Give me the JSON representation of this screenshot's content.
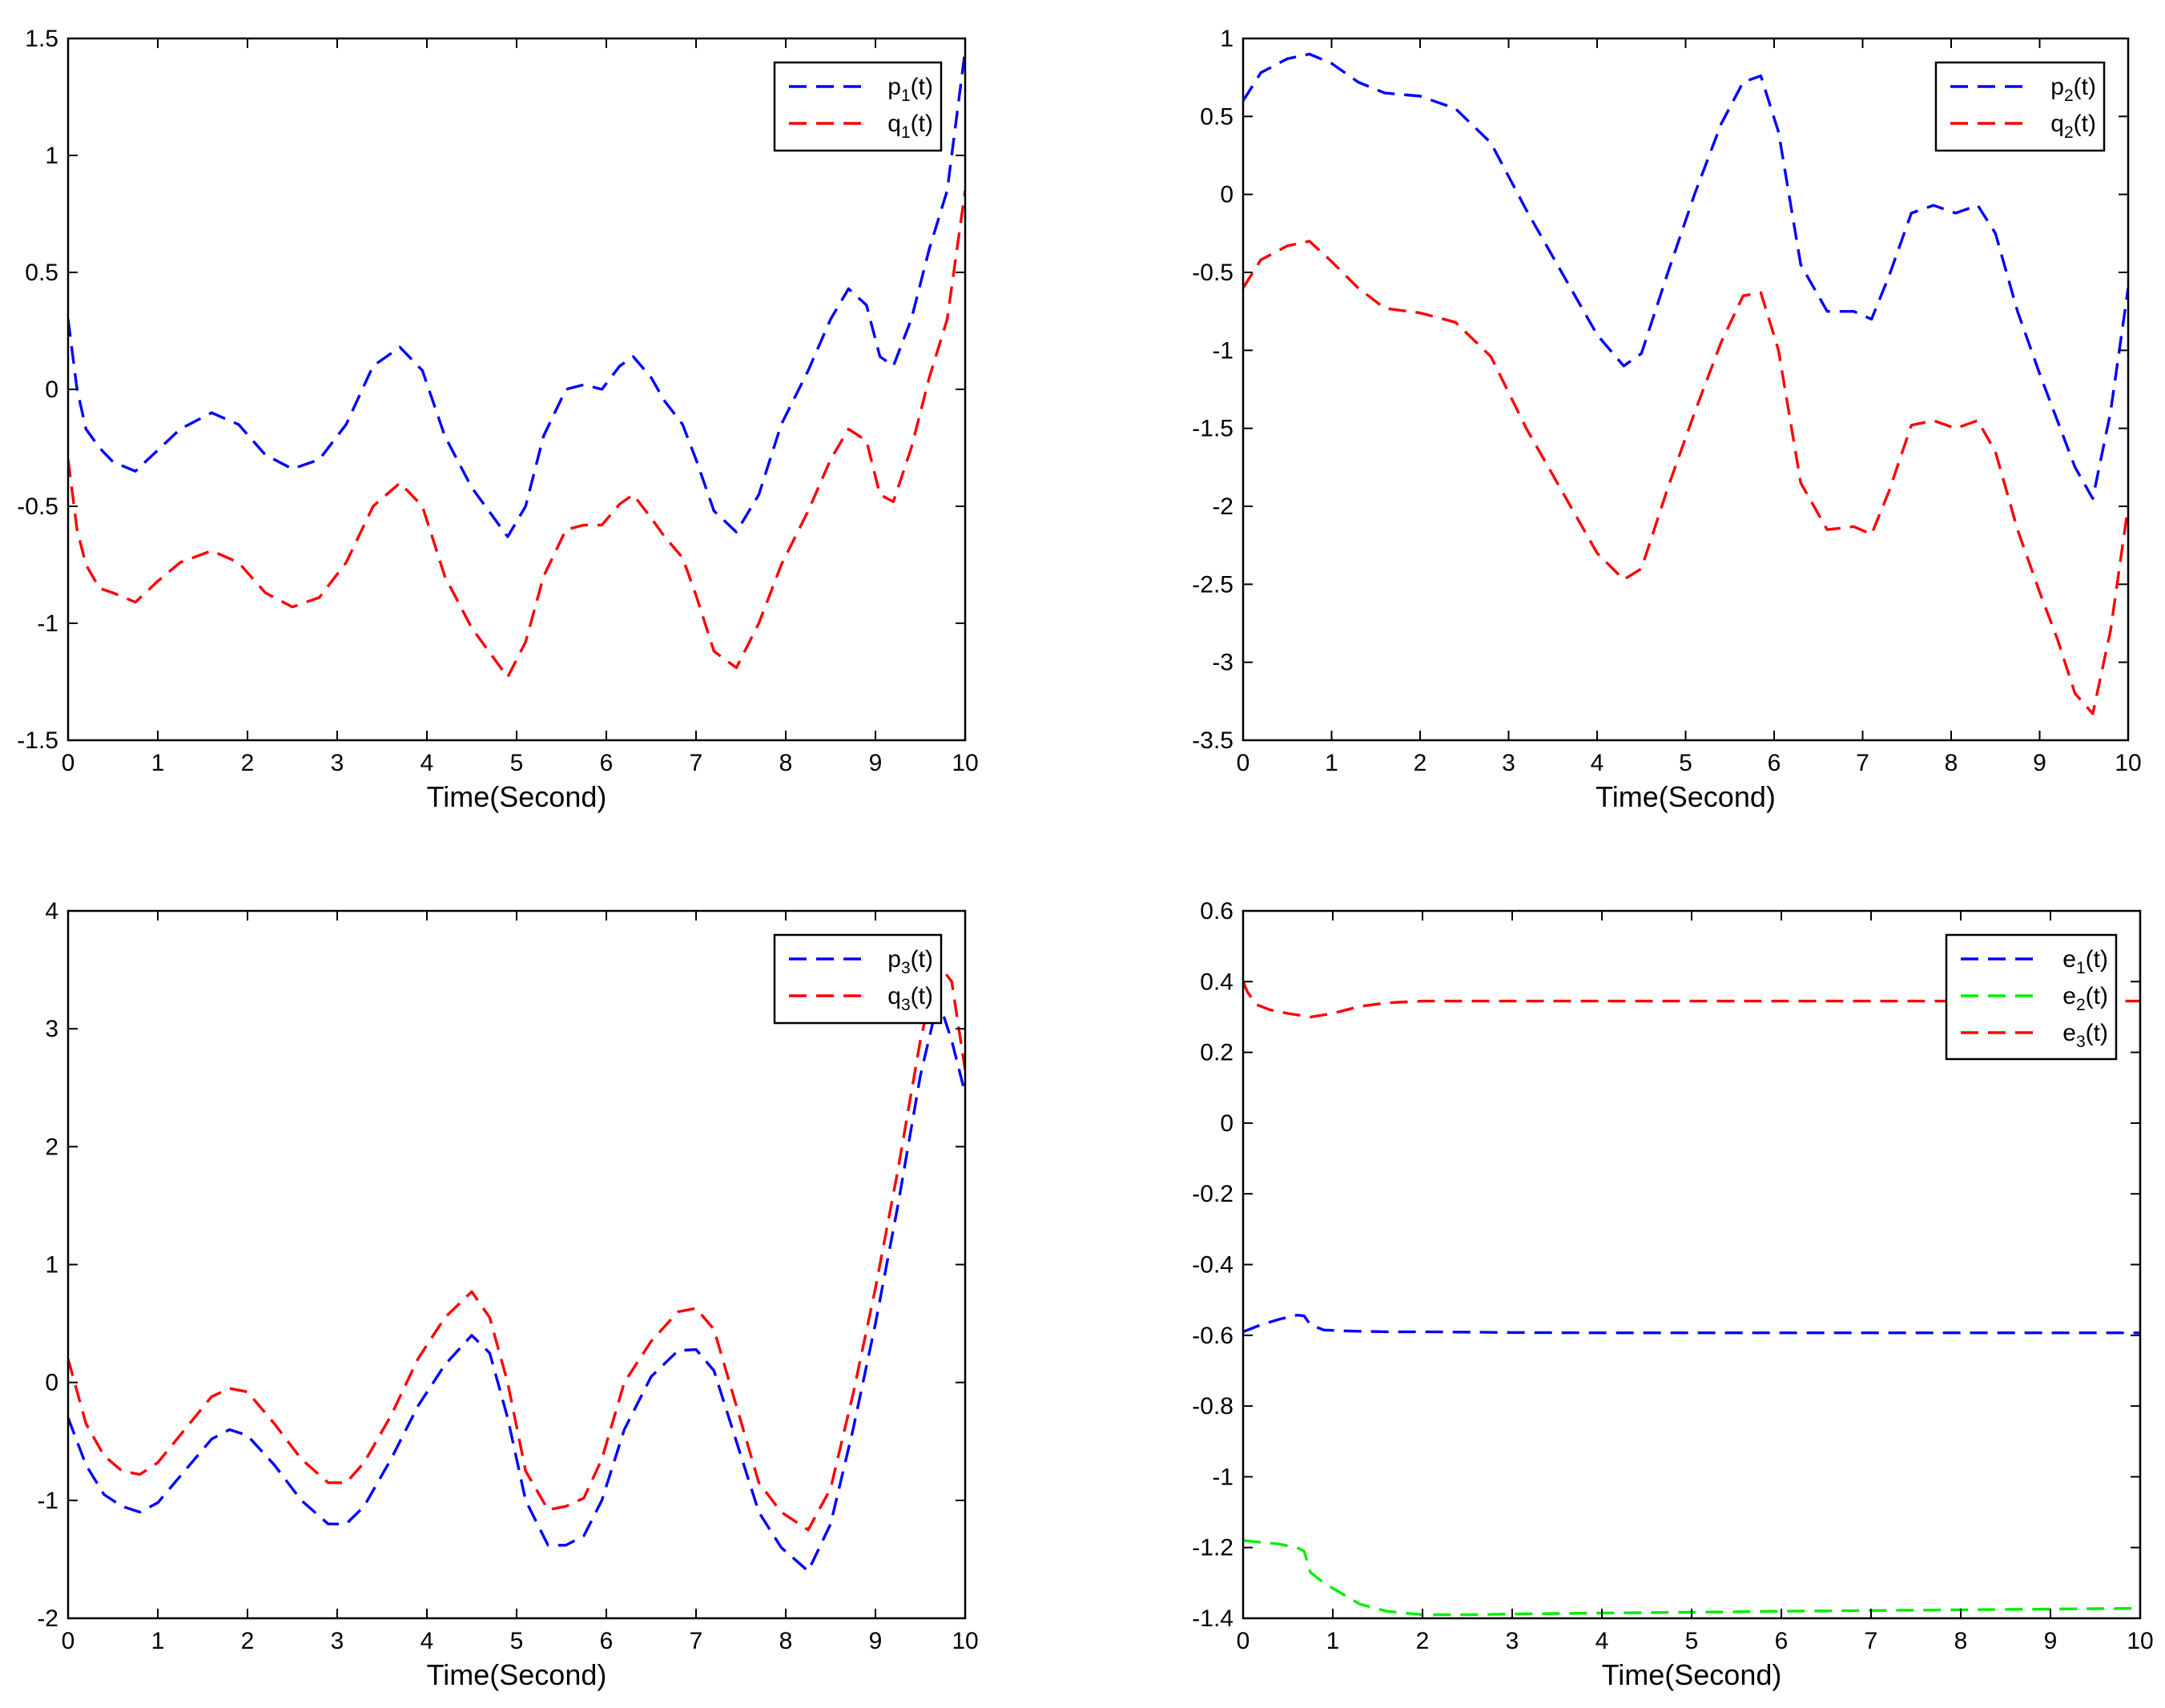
{
  "chart_data": [
    {
      "type": "line",
      "xlabel": "Time(Second)",
      "xlim": [
        0,
        10
      ],
      "ylim": [
        -1.5,
        1.5
      ],
      "xticks": [
        "0",
        "1",
        "2",
        "3",
        "4",
        "5",
        "6",
        "7",
        "8",
        "9",
        "10"
      ],
      "yticks": [
        "-1.5",
        "-1",
        "-0.5",
        "0",
        "0.5",
        "1",
        "1.5"
      ],
      "legend_position": "top-right",
      "series": [
        {
          "name": "p",
          "sub": "1",
          "label": "(t)",
          "color": "#0000ff",
          "x": [
            0,
            0.1,
            0.2,
            0.35,
            0.5,
            0.75,
            1.0,
            1.25,
            1.6,
            1.9,
            2.2,
            2.5,
            2.8,
            3.1,
            3.4,
            3.7,
            3.95,
            4.2,
            4.5,
            4.9,
            5.1,
            5.3,
            5.55,
            5.75,
            5.95,
            6.15,
            6.3,
            6.5,
            6.65,
            6.85,
            7.0,
            7.2,
            7.45,
            7.7,
            7.95,
            8.25,
            8.5,
            8.7,
            8.9,
            9.05,
            9.2,
            9.4,
            9.6,
            9.8,
            10.0
          ],
          "y": [
            0.3,
            0.0,
            -0.17,
            -0.25,
            -0.31,
            -0.35,
            -0.26,
            -0.17,
            -0.1,
            -0.15,
            -0.28,
            -0.34,
            -0.3,
            -0.15,
            0.1,
            0.18,
            0.08,
            -0.2,
            -0.42,
            -0.63,
            -0.5,
            -0.2,
            0.0,
            0.02,
            0.0,
            0.1,
            0.14,
            0.05,
            -0.05,
            -0.15,
            -0.3,
            -0.52,
            -0.61,
            -0.45,
            -0.15,
            0.08,
            0.3,
            0.43,
            0.36,
            0.14,
            0.1,
            0.3,
            0.6,
            0.85,
            1.45
          ]
        },
        {
          "name": "q",
          "sub": "1",
          "label": "(t)",
          "color": "#ff0000",
          "x": [
            0,
            0.1,
            0.2,
            0.35,
            0.5,
            0.75,
            1.0,
            1.25,
            1.6,
            1.9,
            2.2,
            2.5,
            2.8,
            3.1,
            3.4,
            3.7,
            3.95,
            4.2,
            4.5,
            4.9,
            5.1,
            5.3,
            5.55,
            5.75,
            5.95,
            6.15,
            6.3,
            6.5,
            6.65,
            6.85,
            7.0,
            7.2,
            7.45,
            7.7,
            7.95,
            8.25,
            8.5,
            8.7,
            8.9,
            9.05,
            9.2,
            9.4,
            9.6,
            9.8,
            10.0
          ],
          "y": [
            -0.3,
            -0.6,
            -0.75,
            -0.85,
            -0.87,
            -0.91,
            -0.82,
            -0.74,
            -0.69,
            -0.74,
            -0.87,
            -0.93,
            -0.89,
            -0.74,
            -0.5,
            -0.4,
            -0.5,
            -0.8,
            -1.02,
            -1.23,
            -1.08,
            -0.8,
            -0.6,
            -0.58,
            -0.58,
            -0.49,
            -0.45,
            -0.55,
            -0.63,
            -0.72,
            -0.88,
            -1.12,
            -1.19,
            -1.0,
            -0.75,
            -0.52,
            -0.3,
            -0.17,
            -0.22,
            -0.45,
            -0.48,
            -0.25,
            0.05,
            0.3,
            0.85
          ]
        }
      ]
    },
    {
      "type": "line",
      "xlabel": "Time(Second)",
      "xlim": [
        0,
        10
      ],
      "ylim": [
        -3.5,
        1
      ],
      "xticks": [
        "0",
        "1",
        "2",
        "3",
        "4",
        "5",
        "6",
        "7",
        "8",
        "9",
        "10"
      ],
      "yticks": [
        "-3.5",
        "-3",
        "-2.5",
        "-2",
        "-1.5",
        "-1",
        "-0.5",
        "0",
        "0.5",
        "1"
      ],
      "legend_position": "top-right",
      "series": [
        {
          "name": "p",
          "sub": "2",
          "label": "(t)",
          "color": "#0000ff",
          "x": [
            0,
            0.2,
            0.5,
            0.75,
            1.0,
            1.3,
            1.6,
            2.0,
            2.4,
            2.8,
            3.2,
            3.6,
            4.0,
            4.3,
            4.5,
            4.8,
            5.1,
            5.4,
            5.65,
            5.85,
            6.05,
            6.3,
            6.6,
            6.9,
            7.1,
            7.3,
            7.55,
            7.8,
            8.05,
            8.3,
            8.5,
            8.75,
            9.0,
            9.2,
            9.4,
            9.6,
            9.8,
            10.0
          ],
          "y": [
            0.6,
            0.78,
            0.87,
            0.9,
            0.84,
            0.72,
            0.65,
            0.63,
            0.55,
            0.33,
            -0.1,
            -0.5,
            -0.9,
            -1.1,
            -1.02,
            -0.5,
            0.0,
            0.45,
            0.72,
            0.76,
            0.4,
            -0.45,
            -0.75,
            -0.75,
            -0.8,
            -0.52,
            -0.12,
            -0.07,
            -0.12,
            -0.07,
            -0.25,
            -0.75,
            -1.15,
            -1.45,
            -1.75,
            -1.95,
            -1.4,
            -0.6
          ]
        },
        {
          "name": "q",
          "sub": "2",
          "label": "(t)",
          "color": "#ff0000",
          "x": [
            0,
            0.2,
            0.5,
            0.75,
            1.0,
            1.3,
            1.6,
            2.0,
            2.4,
            2.8,
            3.2,
            3.6,
            4.0,
            4.3,
            4.5,
            4.8,
            5.1,
            5.4,
            5.65,
            5.85,
            6.05,
            6.3,
            6.6,
            6.9,
            7.1,
            7.3,
            7.55,
            7.8,
            8.05,
            8.3,
            8.5,
            8.75,
            9.0,
            9.2,
            9.4,
            9.6,
            9.8,
            10.0
          ],
          "y": [
            -0.6,
            -0.42,
            -0.33,
            -0.3,
            -0.43,
            -0.6,
            -0.73,
            -0.76,
            -0.82,
            -1.04,
            -1.5,
            -1.9,
            -2.3,
            -2.47,
            -2.4,
            -1.88,
            -1.4,
            -0.95,
            -0.65,
            -0.63,
            -1.0,
            -1.85,
            -2.15,
            -2.13,
            -2.18,
            -1.9,
            -1.48,
            -1.45,
            -1.5,
            -1.45,
            -1.65,
            -2.15,
            -2.55,
            -2.85,
            -3.2,
            -3.33,
            -2.8,
            -2.0
          ]
        }
      ]
    },
    {
      "type": "line",
      "xlabel": "Time(Second)",
      "xlim": [
        0,
        10
      ],
      "ylim": [
        -2,
        4
      ],
      "xticks": [
        "0",
        "1",
        "2",
        "3",
        "4",
        "5",
        "6",
        "7",
        "8",
        "9",
        "10"
      ],
      "yticks": [
        "-2",
        "-1",
        "0",
        "1",
        "2",
        "3",
        "4"
      ],
      "legend_position": "top-right",
      "series": [
        {
          "name": "p",
          "sub": "3",
          "label": "(t)",
          "color": "#0000ff",
          "x": [
            0,
            0.2,
            0.4,
            0.6,
            0.8,
            1.0,
            1.3,
            1.6,
            1.8,
            2.0,
            2.3,
            2.6,
            2.9,
            3.1,
            3.3,
            3.6,
            3.9,
            4.2,
            4.5,
            4.7,
            4.9,
            5.1,
            5.35,
            5.55,
            5.75,
            5.95,
            6.2,
            6.5,
            6.8,
            7.0,
            7.2,
            7.45,
            7.7,
            7.95,
            8.25,
            8.5,
            8.75,
            9.0,
            9.25,
            9.5,
            9.7,
            9.85,
            10.0
          ],
          "y": [
            -0.3,
            -0.7,
            -0.95,
            -1.05,
            -1.1,
            -1.02,
            -0.75,
            -0.48,
            -0.4,
            -0.45,
            -0.7,
            -1.0,
            -1.2,
            -1.2,
            -1.05,
            -0.65,
            -0.2,
            0.15,
            0.4,
            0.25,
            -0.3,
            -1.0,
            -1.38,
            -1.38,
            -1.3,
            -1.0,
            -0.4,
            0.05,
            0.27,
            0.28,
            0.1,
            -0.5,
            -1.1,
            -1.4,
            -1.6,
            -1.2,
            -0.4,
            0.5,
            1.5,
            2.6,
            3.25,
            2.9,
            2.45
          ]
        },
        {
          "name": "q",
          "sub": "3",
          "label": "(t)",
          "color": "#ff0000",
          "x": [
            0,
            0.2,
            0.4,
            0.6,
            0.8,
            1.0,
            1.3,
            1.6,
            1.8,
            2.0,
            2.3,
            2.6,
            2.9,
            3.1,
            3.3,
            3.6,
            3.9,
            4.2,
            4.5,
            4.7,
            4.9,
            5.1,
            5.35,
            5.55,
            5.75,
            5.95,
            6.2,
            6.5,
            6.8,
            7.0,
            7.2,
            7.45,
            7.7,
            7.95,
            8.25,
            8.5,
            8.75,
            9.0,
            9.25,
            9.5,
            9.7,
            9.85,
            10.0
          ],
          "y": [
            0.2,
            -0.35,
            -0.62,
            -0.75,
            -0.78,
            -0.68,
            -0.4,
            -0.12,
            -0.05,
            -0.08,
            -0.35,
            -0.65,
            -0.85,
            -0.85,
            -0.68,
            -0.28,
            0.2,
            0.55,
            0.77,
            0.55,
            0.0,
            -0.75,
            -1.08,
            -1.05,
            -0.98,
            -0.65,
            0.0,
            0.35,
            0.6,
            0.63,
            0.45,
            -0.2,
            -0.85,
            -1.1,
            -1.25,
            -0.9,
            -0.1,
            0.8,
            1.8,
            2.9,
            3.55,
            3.4,
            2.65
          ]
        }
      ]
    },
    {
      "type": "line",
      "xlabel": "Time(Second)",
      "xlim": [
        0,
        10
      ],
      "ylim": [
        -1.4,
        0.6
      ],
      "xticks": [
        "0",
        "1",
        "2",
        "3",
        "4",
        "5",
        "6",
        "7",
        "8",
        "9",
        "10"
      ],
      "yticks": [
        "-1.4",
        "-1.2",
        "-1",
        "-0.8",
        "-0.6",
        "-0.4",
        "-0.2",
        "0",
        "0.2",
        "0.4",
        "0.6"
      ],
      "legend_position": "top-right",
      "series": [
        {
          "name": "e",
          "sub": "1",
          "label": "(t)",
          "color": "#0000ff",
          "x": [
            0,
            0.2,
            0.4,
            0.6,
            0.68,
            0.75,
            0.9,
            1.2,
            1.6,
            2.0,
            3.0,
            4.0,
            5.0,
            6.0,
            7.0,
            8.0,
            9.0,
            10.0
          ],
          "y": [
            -0.59,
            -0.57,
            -0.555,
            -0.543,
            -0.545,
            -0.57,
            -0.585,
            -0.588,
            -0.59,
            -0.59,
            -0.592,
            -0.593,
            -0.593,
            -0.593,
            -0.593,
            -0.593,
            -0.593,
            -0.593
          ]
        },
        {
          "name": "e",
          "sub": "2",
          "label": "(t)",
          "color": "#00ee00",
          "x": [
            0,
            0.2,
            0.4,
            0.6,
            0.68,
            0.75,
            0.9,
            1.1,
            1.3,
            1.6,
            2.0,
            2.5,
            3.0,
            4.0,
            5.0,
            6.0,
            7.0,
            8.0,
            9.0,
            10.0
          ],
          "y": [
            -1.18,
            -1.185,
            -1.19,
            -1.2,
            -1.21,
            -1.27,
            -1.3,
            -1.33,
            -1.36,
            -1.38,
            -1.39,
            -1.39,
            -1.388,
            -1.385,
            -1.383,
            -1.38,
            -1.378,
            -1.376,
            -1.374,
            -1.372
          ]
        },
        {
          "name": "e",
          "sub": "3",
          "label": "(t)",
          "color": "#ff0000",
          "x": [
            0,
            0.05,
            0.15,
            0.3,
            0.5,
            0.75,
            1.0,
            1.3,
            1.6,
            2.0,
            3.0,
            4.0,
            5.0,
            6.0,
            7.0,
            8.0,
            9.0,
            10.0
          ],
          "y": [
            0.4,
            0.37,
            0.335,
            0.32,
            0.31,
            0.3,
            0.31,
            0.33,
            0.34,
            0.345,
            0.345,
            0.345,
            0.345,
            0.345,
            0.345,
            0.345,
            0.345,
            0.345
          ]
        }
      ]
    }
  ]
}
